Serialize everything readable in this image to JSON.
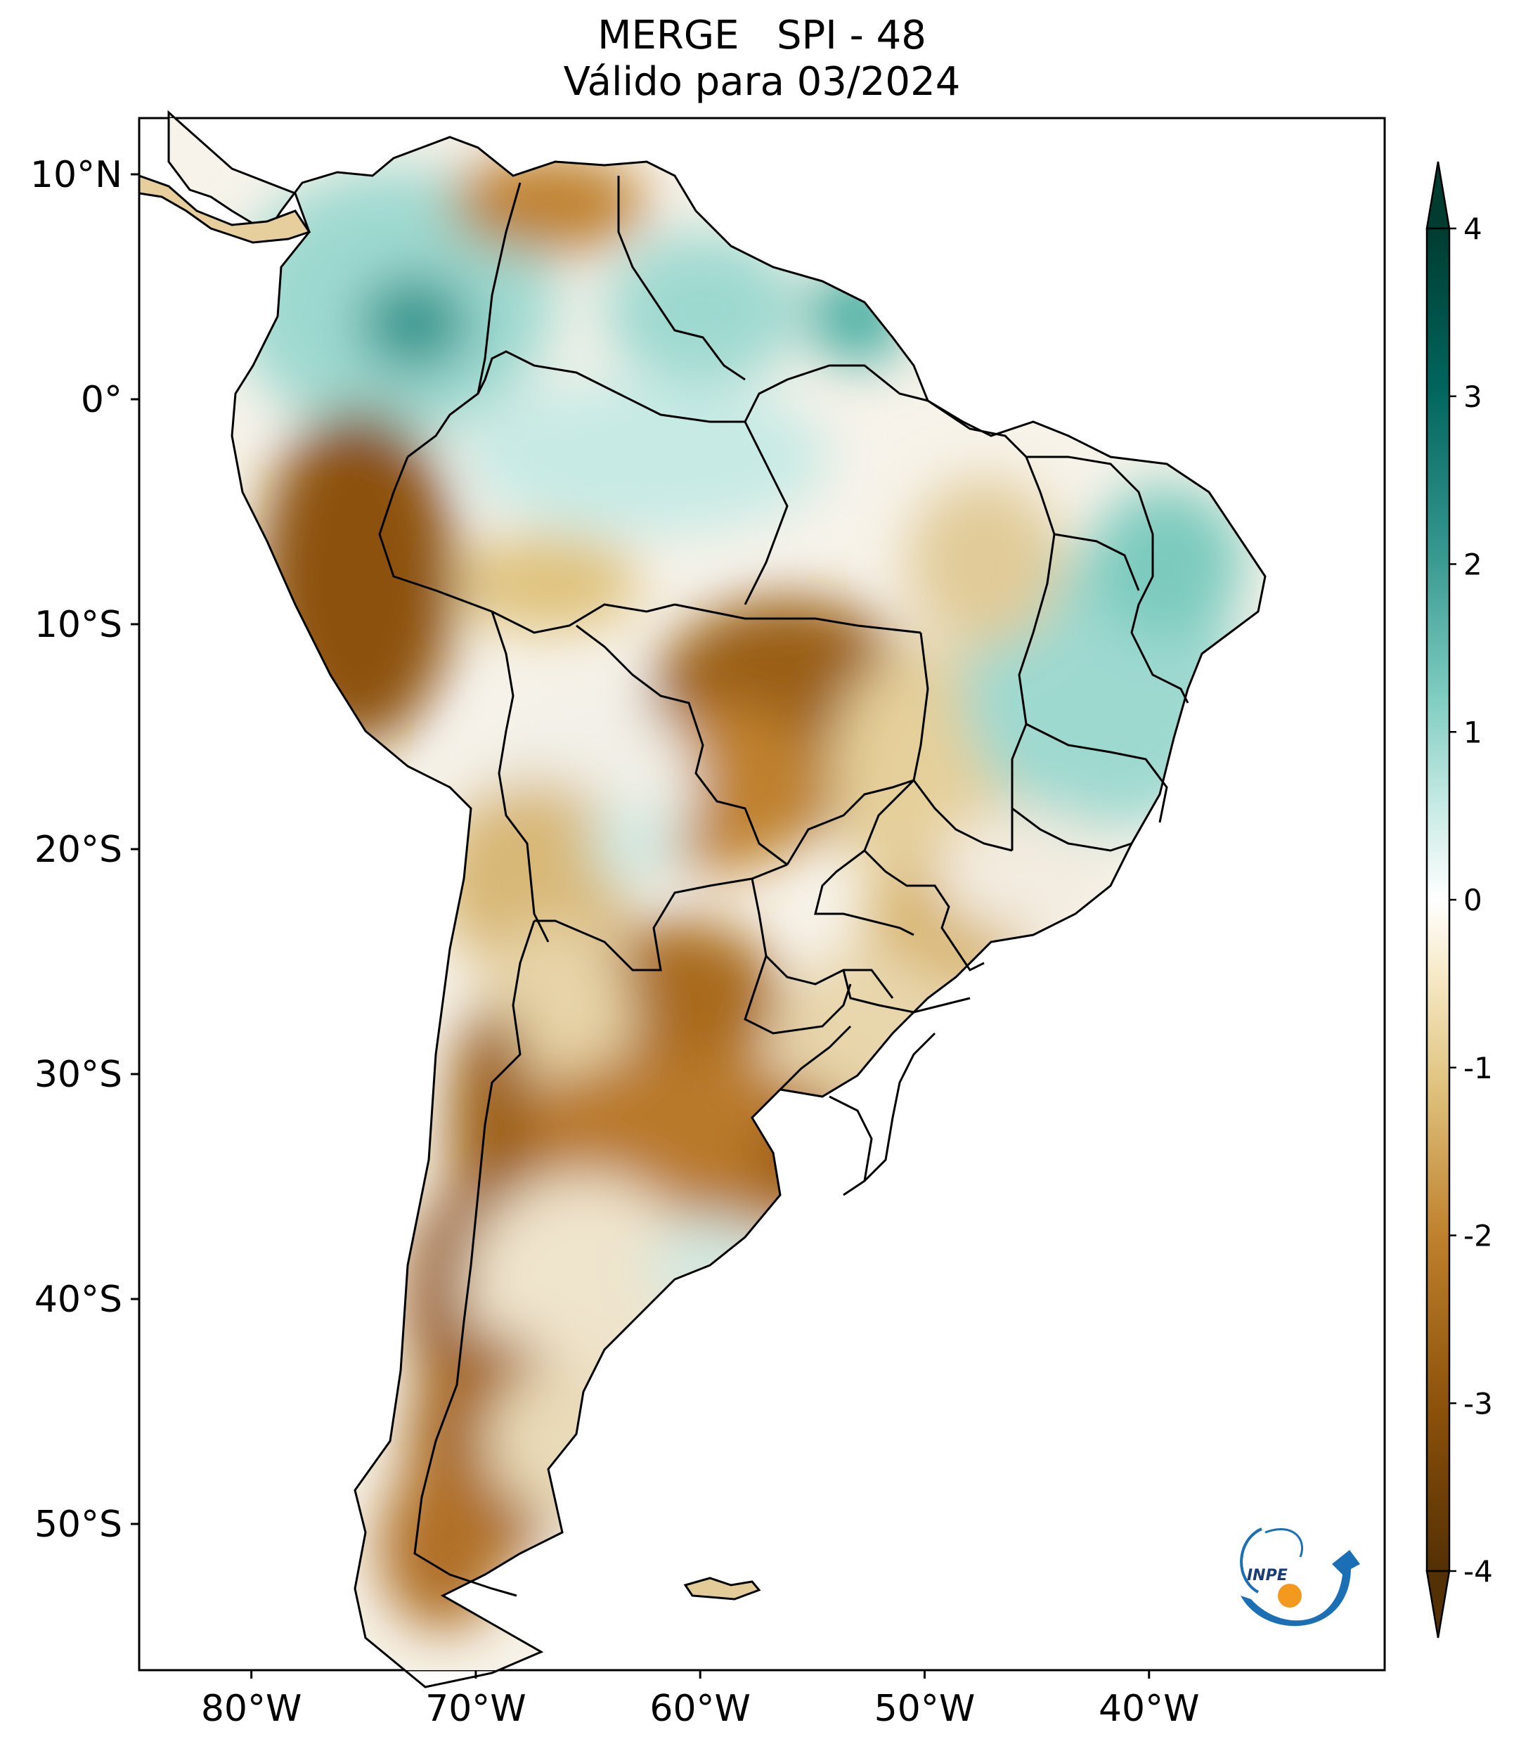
{
  "title": {
    "line1": "MERGE   SPI - 48",
    "line2": "Válido para 03/2024"
  },
  "map": {
    "lat_labels": [
      "10°N",
      "0°",
      "10°S",
      "20°S",
      "30°S",
      "40°S",
      "50°S"
    ],
    "lon_labels": [
      "80°W",
      "70°W",
      "60°W",
      "50°W",
      "40°W"
    ],
    "lat_values": [
      10,
      0,
      -10,
      -20,
      -30,
      -40,
      -50
    ],
    "lon_values": [
      -80,
      -70,
      -60,
      -50,
      -40
    ],
    "extent": {
      "lon_min": -85,
      "lon_max": -29.5,
      "lat_min": -56.5,
      "lat_max": 12.5
    }
  },
  "colorbar": {
    "tick_labels": [
      "4",
      "3",
      "2",
      "1",
      "0",
      "-1",
      "-2",
      "-3",
      "-4"
    ],
    "tick_values": [
      4,
      3,
      2,
      1,
      0,
      -1,
      -2,
      -3,
      -4
    ],
    "range": [
      -4,
      4
    ],
    "extend": "both",
    "colors": [
      "#543005",
      "#8c510a",
      "#bf812d",
      "#dfc27d",
      "#f6e8c3",
      "#ffffff",
      "#c7eae5",
      "#80cdc1",
      "#35978f",
      "#01665e",
      "#003c30"
    ]
  },
  "logo": {
    "text": "INPE",
    "colors": {
      "blue": "#1a6fb5",
      "orange": "#f39a1e"
    }
  }
}
